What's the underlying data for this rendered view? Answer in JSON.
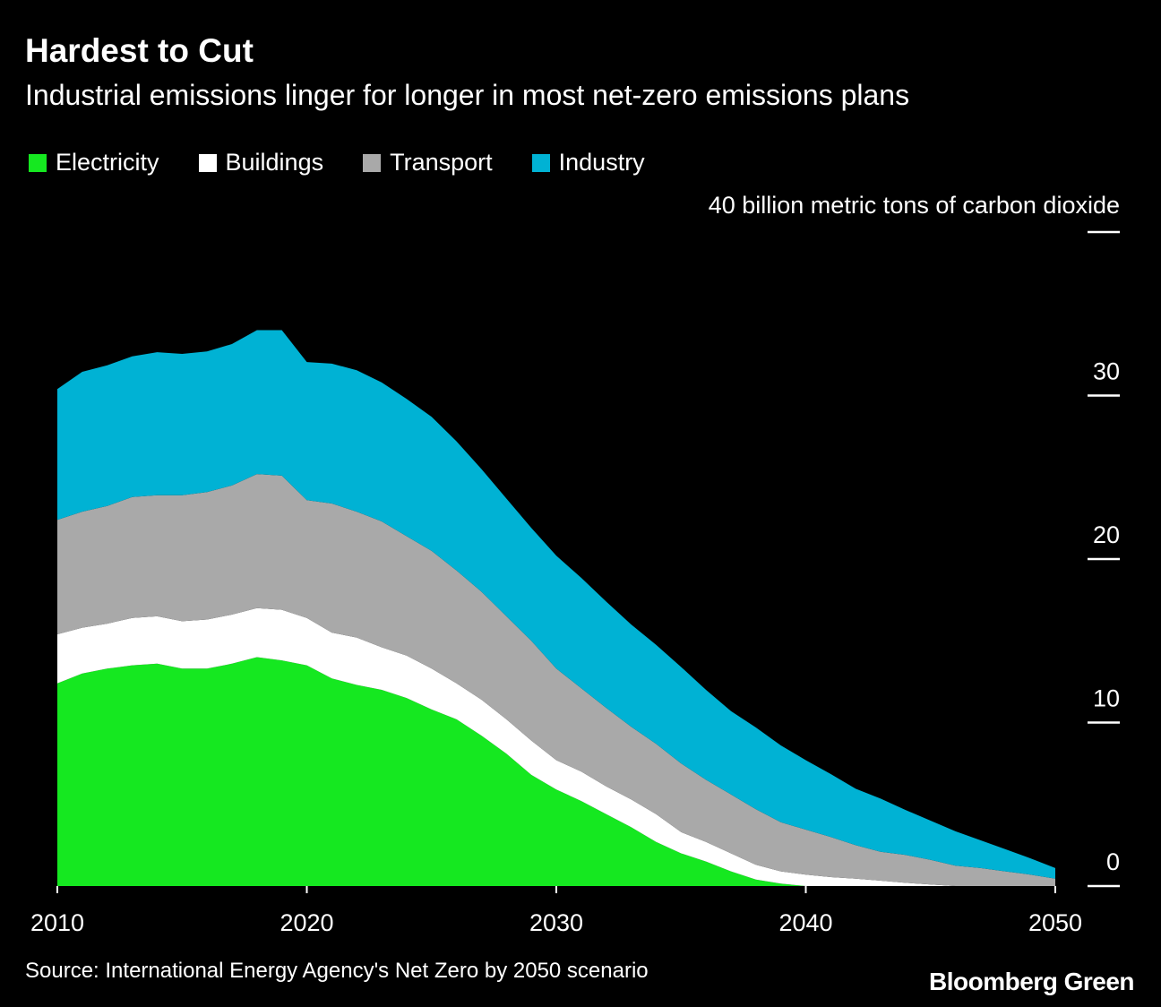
{
  "title": "Hardest to Cut",
  "subtitle": "Industrial emissions linger for longer in most net-zero emissions plans",
  "source": "Source: International Energy Agency's Net Zero by 2050 scenario",
  "logo": "Bloomberg Green",
  "chart_data": {
    "type": "area",
    "stacked": true,
    "title": "Hardest to Cut",
    "ylabel": "40 billion metric tons of carbon dioxide",
    "ylim": [
      0,
      40
    ],
    "xlim": [
      2010,
      2050
    ],
    "y_ticks": [
      "0",
      "10",
      "20",
      "30",
      "40 billion metric tons of carbon dioxide"
    ],
    "y_tick_values": [
      0,
      10,
      20,
      30,
      40
    ],
    "x_ticks": [
      "2010",
      "2020",
      "2030",
      "2040",
      "2050"
    ],
    "x_tick_values": [
      2010,
      2020,
      2030,
      2040,
      2050
    ],
    "legend_position": "top-left",
    "grid": false,
    "x": [
      2010,
      2011,
      2012,
      2013,
      2014,
      2015,
      2016,
      2017,
      2018,
      2019,
      2020,
      2021,
      2022,
      2023,
      2024,
      2025,
      2026,
      2027,
      2028,
      2029,
      2030,
      2031,
      2032,
      2033,
      2034,
      2035,
      2036,
      2037,
      2038,
      2039,
      2040,
      2041,
      2042,
      2043,
      2044,
      2045,
      2046,
      2047,
      2048,
      2049,
      2050
    ],
    "series": [
      {
        "name": "Electricity",
        "color": "#15e820",
        "values": [
          12.4,
          13.0,
          13.3,
          13.5,
          13.6,
          13.3,
          13.3,
          13.6,
          14.0,
          13.8,
          13.5,
          12.7,
          12.3,
          12.0,
          11.5,
          10.8,
          10.2,
          9.2,
          8.1,
          6.8,
          5.9,
          5.2,
          4.4,
          3.6,
          2.7,
          2.0,
          1.5,
          0.9,
          0.4,
          0.15,
          0,
          0,
          0,
          0,
          0,
          0,
          0,
          0,
          0,
          0,
          0
        ]
      },
      {
        "name": "Buildings",
        "color": "#ffffff",
        "values": [
          3.0,
          2.8,
          2.75,
          2.9,
          2.9,
          2.9,
          3.0,
          3.0,
          3.0,
          3.1,
          2.9,
          2.8,
          2.9,
          2.6,
          2.6,
          2.5,
          2.2,
          2.2,
          2.1,
          2.1,
          1.8,
          1.8,
          1.7,
          1.7,
          1.7,
          1.3,
          1.2,
          1.1,
          0.9,
          0.75,
          0.7,
          0.55,
          0.45,
          0.33,
          0.2,
          0.1,
          0,
          0,
          0,
          0,
          0
        ]
      },
      {
        "name": "Transport",
        "color": "#a9a9a9",
        "values": [
          7.0,
          7.1,
          7.2,
          7.4,
          7.4,
          7.7,
          7.8,
          7.9,
          8.2,
          8.2,
          7.2,
          7.9,
          7.7,
          7.7,
          7.3,
          7.2,
          6.9,
          6.6,
          6.3,
          6.1,
          5.6,
          5.1,
          4.8,
          4.45,
          4.3,
          4.2,
          3.8,
          3.6,
          3.4,
          3.0,
          2.75,
          2.45,
          2.05,
          1.77,
          1.7,
          1.5,
          1.25,
          1.1,
          0.9,
          0.7,
          0.45
        ]
      },
      {
        "name": "Industry",
        "color": "#00b2d4",
        "values": [
          8.0,
          8.55,
          8.6,
          8.6,
          8.75,
          8.65,
          8.6,
          8.65,
          8.8,
          8.9,
          8.45,
          8.55,
          8.65,
          8.5,
          8.4,
          8.2,
          7.9,
          7.5,
          7.2,
          6.9,
          6.9,
          6.75,
          6.5,
          6.25,
          6.05,
          5.9,
          5.5,
          5.1,
          5.0,
          4.7,
          4.25,
          3.85,
          3.45,
          3.25,
          2.75,
          2.4,
          2.1,
          1.7,
          1.35,
          1.0,
          0.65
        ]
      }
    ]
  }
}
